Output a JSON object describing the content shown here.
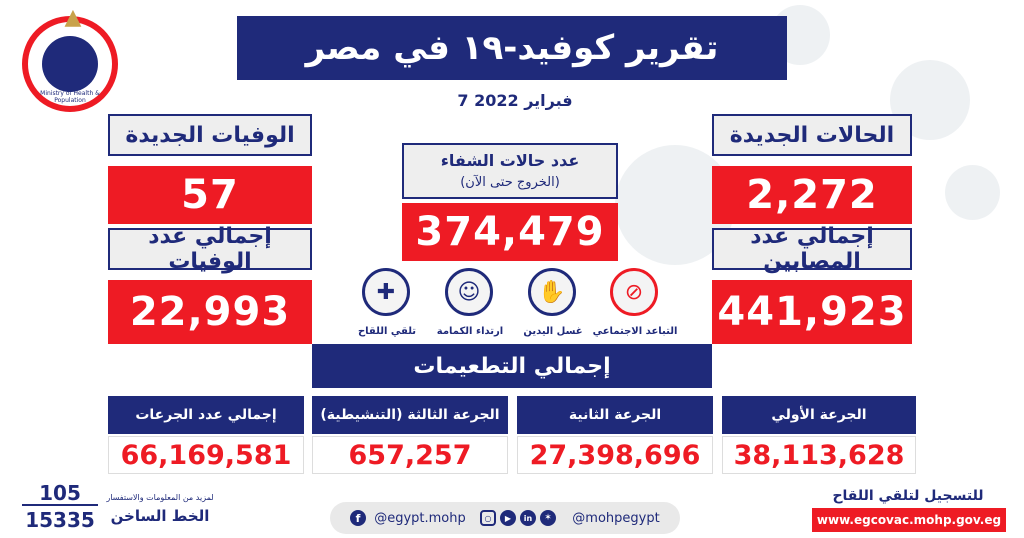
{
  "header": {
    "title": "تقرير كوفيد-١٩ في مصر",
    "date": "7 فبراير 2022",
    "logo_text": "Ministry of Health & Population"
  },
  "stats": {
    "new_cases_label": "الحالات الجديدة",
    "new_cases_value": "2,272",
    "total_cases_label": "إجمالي عدد المصابين",
    "total_cases_value": "441,923",
    "new_deaths_label": "الوفيات الجديدة",
    "new_deaths_value": "57",
    "total_deaths_label": "إجمالي عدد الوفيات",
    "total_deaths_value": "22,993",
    "recovered_label": "عدد حالات الشفاء",
    "recovered_sublabel": "(الخروج حتى الآن)",
    "recovered_value": "374,479"
  },
  "precautions": [
    {
      "label": "التباعد الاجتماعي",
      "icon": "social-distancing-icon"
    },
    {
      "label": "غسل اليدين",
      "icon": "hand-washing-icon"
    },
    {
      "label": "ارتداء الكمامة",
      "icon": "face-mask-icon"
    },
    {
      "label": "تلقي اللقاح",
      "icon": "vaccine-icon"
    }
  ],
  "vaccinations": {
    "title": "إجمالي التطعيمات",
    "items": [
      {
        "label": "الجرعة الأولي",
        "value": "38,113,628"
      },
      {
        "label": "الجرعة الثانية",
        "value": "27,398,696"
      },
      {
        "label": "الجرعة الثالثة (التنشيطية)",
        "value": "657,257"
      },
      {
        "label": "إجمالي عدد الجرعات",
        "value": "66,169,581"
      }
    ]
  },
  "footer": {
    "hotline_1": "105",
    "hotline_2": "15335",
    "hotline_info": "لمزيد من المعلومات والاستفسار",
    "hotline_label": "الخط الساخن",
    "social_facebook": "@egypt.mohp",
    "social_handle": "@mohpegypt",
    "register_label": "للتسجيل لتلقي اللقاح",
    "register_url": "www.egcovac.mohp.gov.eg"
  },
  "colors": {
    "navy": "#1f2a7a",
    "red": "#ee1b24",
    "label_bg": "#eeeeee"
  }
}
